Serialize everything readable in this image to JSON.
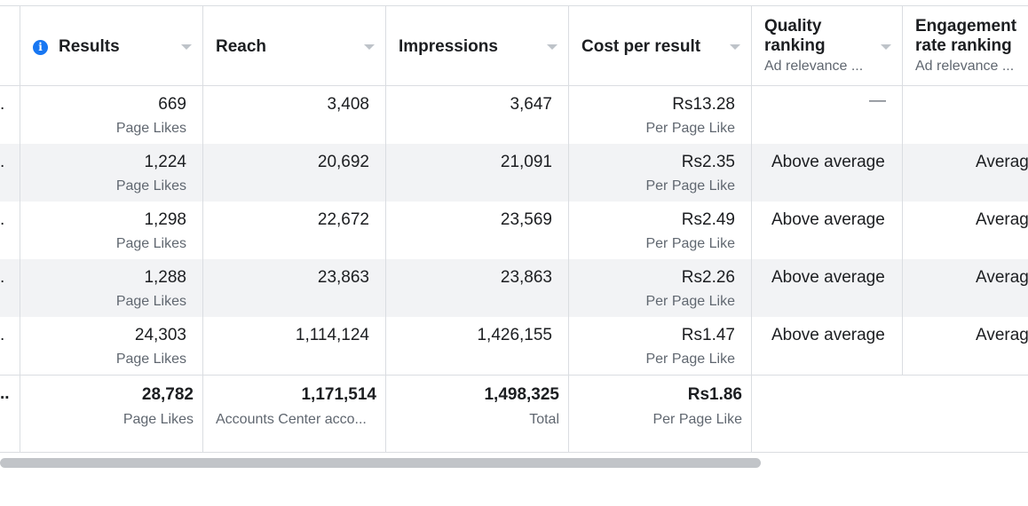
{
  "columns": {
    "results": "Results",
    "reach": "Reach",
    "impressions": "Impressions",
    "cost": "Cost per result",
    "quality_line1": "Quality",
    "quality_line2": "ranking",
    "quality_sub": "Ad relevance ...",
    "engagement_line1": "Engagement",
    "engagement_line2": "rate ranking",
    "engagement_sub": "Ad relevance ..."
  },
  "rows": [
    {
      "results": "669",
      "results_unit": "Page Likes",
      "reach": "3,408",
      "impressions": "3,647",
      "cost": "Rs13.28",
      "cost_unit": "Per Page Like",
      "quality": "—",
      "engagement": "—"
    },
    {
      "results": "1,224",
      "results_unit": "Page Likes",
      "reach": "20,692",
      "impressions": "21,091",
      "cost": "Rs2.35",
      "cost_unit": "Per Page Like",
      "quality": "Above average",
      "engagement": "Averag"
    },
    {
      "results": "1,298",
      "results_unit": "Page Likes",
      "reach": "22,672",
      "impressions": "23,569",
      "cost": "Rs2.49",
      "cost_unit": "Per Page Like",
      "quality": "Above average",
      "engagement": "Averag"
    },
    {
      "results": "1,288",
      "results_unit": "Page Likes",
      "reach": "23,863",
      "impressions": "23,863",
      "cost": "Rs2.26",
      "cost_unit": "Per Page Like",
      "quality": "Above average",
      "engagement": "Averag"
    },
    {
      "results": "24,303",
      "results_unit": "Page Likes",
      "reach": "1,114,124",
      "impressions": "1,426,155",
      "cost": "Rs1.47",
      "cost_unit": "Per Page Like",
      "quality": "Above average",
      "engagement": "Averag"
    }
  ],
  "totals": {
    "results": "28,782",
    "results_unit": "Page Likes",
    "reach": "1,171,514",
    "reach_unit": "Accounts Center acco...",
    "impressions": "1,498,325",
    "impressions_unit": "Total",
    "cost": "Rs1.86",
    "cost_unit": "Per Page Like"
  },
  "row_marker": ".",
  "total_marker": ".."
}
